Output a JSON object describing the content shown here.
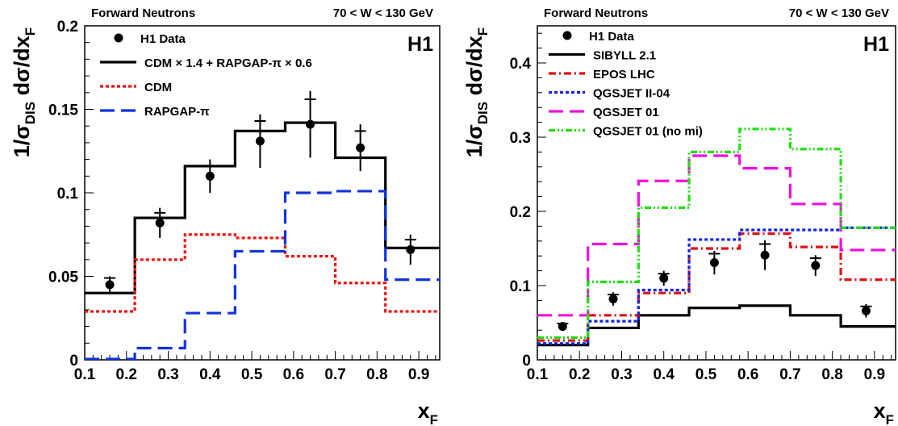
{
  "chart_data": [
    {
      "type": "line",
      "header_left": "Forward Neutrons",
      "header_right": "70 < W < 130 GeV",
      "experiment": "H1",
      "xlabel": "x",
      "xlabel_sub": "F",
      "ylabel_parts": [
        "1/σ",
        "DIS",
        " dσ/dx",
        "F"
      ],
      "xlim": [
        0.1,
        0.95
      ],
      "ylim": [
        0,
        0.2
      ],
      "xticks": [
        "0.1",
        "0.2",
        "0.3",
        "0.4",
        "0.5",
        "0.6",
        "0.7",
        "0.8",
        "0.9"
      ],
      "yticks": [
        "0",
        "0.05",
        "0.1",
        "0.15",
        "0.2"
      ],
      "bin_edges": [
        0.1,
        0.22,
        0.34,
        0.46,
        0.58,
        0.7,
        0.82,
        0.95
      ],
      "data": {
        "name": "H1 Data",
        "x": [
          0.16,
          0.28,
          0.4,
          0.52,
          0.64,
          0.76,
          0.88
        ],
        "y": [
          0.045,
          0.082,
          0.11,
          0.131,
          0.141,
          0.127,
          0.066
        ],
        "err_stat": [
          0.004,
          0.006,
          0.006,
          0.012,
          0.015,
          0.01,
          0.006
        ],
        "err_tot": [
          0.005,
          0.009,
          0.01,
          0.016,
          0.02,
          0.014,
          0.009
        ]
      },
      "series": [
        {
          "name": "CDM × 1.4 + RAPGAP-π × 0.6",
          "values": [
            0.04,
            0.085,
            0.116,
            0.137,
            0.142,
            0.121,
            0.067
          ],
          "color": "#000000",
          "style": "solid"
        },
        {
          "name": "CDM",
          "values": [
            0.029,
            0.06,
            0.075,
            0.073,
            0.062,
            0.046,
            0.029
          ],
          "color": "#ee1111",
          "style": "dotted"
        },
        {
          "name": "RAPGAP-π",
          "values": [
            0.0005,
            0.007,
            0.028,
            0.065,
            0.1,
            0.101,
            0.048
          ],
          "color": "#1133dd",
          "style": "longdash"
        }
      ]
    },
    {
      "type": "line",
      "header_left": "Forward Neutrons",
      "header_right": "70 < W < 130 GeV",
      "experiment": "H1",
      "xlabel": "x",
      "xlabel_sub": "F",
      "ylabel_parts": [
        "1/σ",
        "DIS",
        " dσ/dx",
        "F"
      ],
      "xlim": [
        0.1,
        0.95
      ],
      "ylim": [
        0,
        0.45
      ],
      "xticks": [
        "0.1",
        "0.2",
        "0.3",
        "0.4",
        "0.5",
        "0.6",
        "0.7",
        "0.8",
        "0.9"
      ],
      "yticks": [
        "0",
        "0.1",
        "0.2",
        "0.3",
        "0.4"
      ],
      "bin_edges": [
        0.1,
        0.22,
        0.34,
        0.46,
        0.58,
        0.7,
        0.82,
        0.95
      ],
      "data": {
        "name": "H1 Data",
        "x": [
          0.16,
          0.28,
          0.4,
          0.52,
          0.64,
          0.76,
          0.88
        ],
        "y": [
          0.045,
          0.082,
          0.11,
          0.131,
          0.141,
          0.127,
          0.066
        ],
        "err_stat": [
          0.004,
          0.006,
          0.006,
          0.012,
          0.015,
          0.01,
          0.006
        ],
        "err_tot": [
          0.005,
          0.009,
          0.01,
          0.016,
          0.02,
          0.014,
          0.009
        ]
      },
      "series": [
        {
          "name": "SIBYLL 2.1",
          "values": [
            0.02,
            0.043,
            0.06,
            0.07,
            0.073,
            0.06,
            0.045
          ],
          "color": "#000000",
          "style": "solid"
        },
        {
          "name": "EPOS LHC",
          "values": [
            0.026,
            0.06,
            0.09,
            0.15,
            0.17,
            0.152,
            0.108
          ],
          "color": "#dd1111",
          "style": "dashdot"
        },
        {
          "name": "QGSJET II-04",
          "values": [
            0.022,
            0.052,
            0.094,
            0.162,
            0.175,
            0.175,
            0.178
          ],
          "color": "#1122ee",
          "style": "dotted"
        },
        {
          "name": "QGSJET 01",
          "values": [
            0.06,
            0.156,
            0.241,
            0.275,
            0.258,
            0.21,
            0.148
          ],
          "color": "#ee11dd",
          "style": "longdash"
        },
        {
          "name": "QGSJET 01 (no mi)",
          "values": [
            0.03,
            0.105,
            0.205,
            0.28,
            0.311,
            0.284,
            0.178
          ],
          "color": "#22dd11",
          "style": "dashdotdot"
        }
      ]
    }
  ]
}
